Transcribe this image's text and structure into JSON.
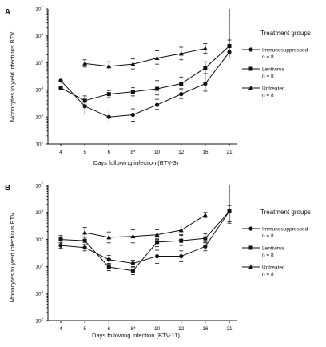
{
  "chart_data": [
    {
      "type": "line",
      "panel_label": "A",
      "xlabel": "Days following infection (BTV-3)",
      "ylabel": "Monocytes to yield infectious BTV",
      "categories": [
        "4",
        "5",
        "6",
        "8*",
        "10",
        "12",
        "16",
        "21"
      ],
      "yscale": "log",
      "ylim": [
        100,
        10000000
      ],
      "yticks": [
        {
          "base": "10",
          "exp": "2"
        },
        {
          "base": "10",
          "exp": "3"
        },
        {
          "base": "10",
          "exp": "4"
        },
        {
          "base": "10",
          "exp": "5"
        },
        {
          "base": "10",
          "exp": "6"
        },
        {
          "base": "10",
          "exp": "7"
        }
      ],
      "legend_title": "Treatment groups",
      "legend_position": "right",
      "series": [
        {
          "name": "Immunosuppressed",
          "n_label": "n = 8",
          "marker": "circle",
          "values": [
            22000,
            2500,
            1000,
            1200,
            2800,
            7000,
            17000,
            250000
          ],
          "err_upper": [
            null,
            5000,
            1800,
            2000,
            4500,
            11000,
            40000,
            480000
          ],
          "err_lower": [
            null,
            1300,
            650,
            700,
            1900,
            4800,
            9000,
            150000
          ]
        },
        {
          "name": "Lentivirus",
          "n_label": "n = 8",
          "marker": "square",
          "values": [
            12000,
            4000,
            7000,
            8500,
            11000,
            17000,
            65000,
            420000
          ],
          "err_upper": [
            14000,
            6000,
            9500,
            12000,
            22000,
            30000,
            110000,
            700000
          ],
          "err_lower": [
            10000,
            2800,
            5200,
            6000,
            6500,
            11000,
            40000,
            260000
          ],
          "line_end": 10000000
        },
        {
          "name": "Untreated",
          "n_label": "n = 8",
          "marker": "triangle",
          "values": [
            null,
            95000,
            75000,
            90000,
            150000,
            220000,
            340000,
            null
          ],
          "err_upper": [
            null,
            130000,
            110000,
            140000,
            280000,
            380000,
            520000,
            null
          ],
          "err_lower": [
            null,
            70000,
            55000,
            60000,
            90000,
            130000,
            230000,
            null
          ]
        }
      ]
    },
    {
      "type": "line",
      "panel_label": "B",
      "xlabel": "Days following infection (BTV-11)",
      "ylabel": "Monocytes to yield infectious BTV",
      "categories": [
        "4",
        "5",
        "6",
        "8*",
        "10",
        "12",
        "16",
        "21"
      ],
      "yscale": "log",
      "ylim": [
        100,
        10000000
      ],
      "yticks": [
        {
          "base": "10",
          "exp": "2"
        },
        {
          "base": "10",
          "exp": "3"
        },
        {
          "base": "10",
          "exp": "4"
        },
        {
          "base": "10",
          "exp": "5"
        },
        {
          "base": "10",
          "exp": "6"
        },
        {
          "base": "10",
          "exp": "7"
        }
      ],
      "legend_title": "Treatment groups",
      "legend_position": "right",
      "series": [
        {
          "name": "Immunosuppressed",
          "n_label": "n = 8",
          "marker": "circle",
          "values": [
            60000,
            50000,
            18000,
            13000,
            24000,
            24000,
            55000,
            1100000
          ],
          "err_upper": [
            75000,
            65000,
            26000,
            17000,
            40000,
            38000,
            75000,
            1900000
          ],
          "err_lower": [
            48000,
            38000,
            12000,
            9500,
            13000,
            15000,
            38000,
            400000
          ]
        },
        {
          "name": "Lentivirus",
          "n_label": "n = 8",
          "marker": "square",
          "values": [
            100000,
            90000,
            9500,
            7000,
            80000,
            90000,
            110000,
            1100000
          ],
          "err_upper": [
            140000,
            120000,
            13000,
            10000,
            110000,
            150000,
            160000,
            1800000
          ],
          "err_lower": [
            75000,
            65000,
            7000,
            5000,
            55000,
            60000,
            80000,
            450000
          ],
          "line_end": 10000000
        },
        {
          "name": "Untreated",
          "n_label": "n = 8",
          "marker": "triangle",
          "values": [
            null,
            180000,
            120000,
            130000,
            150000,
            220000,
            800000,
            null
          ],
          "err_upper": [
            null,
            280000,
            190000,
            230000,
            230000,
            340000,
            1000000,
            null
          ],
          "err_lower": [
            null,
            120000,
            75000,
            75000,
            100000,
            140000,
            650000,
            null
          ]
        }
      ]
    }
  ]
}
